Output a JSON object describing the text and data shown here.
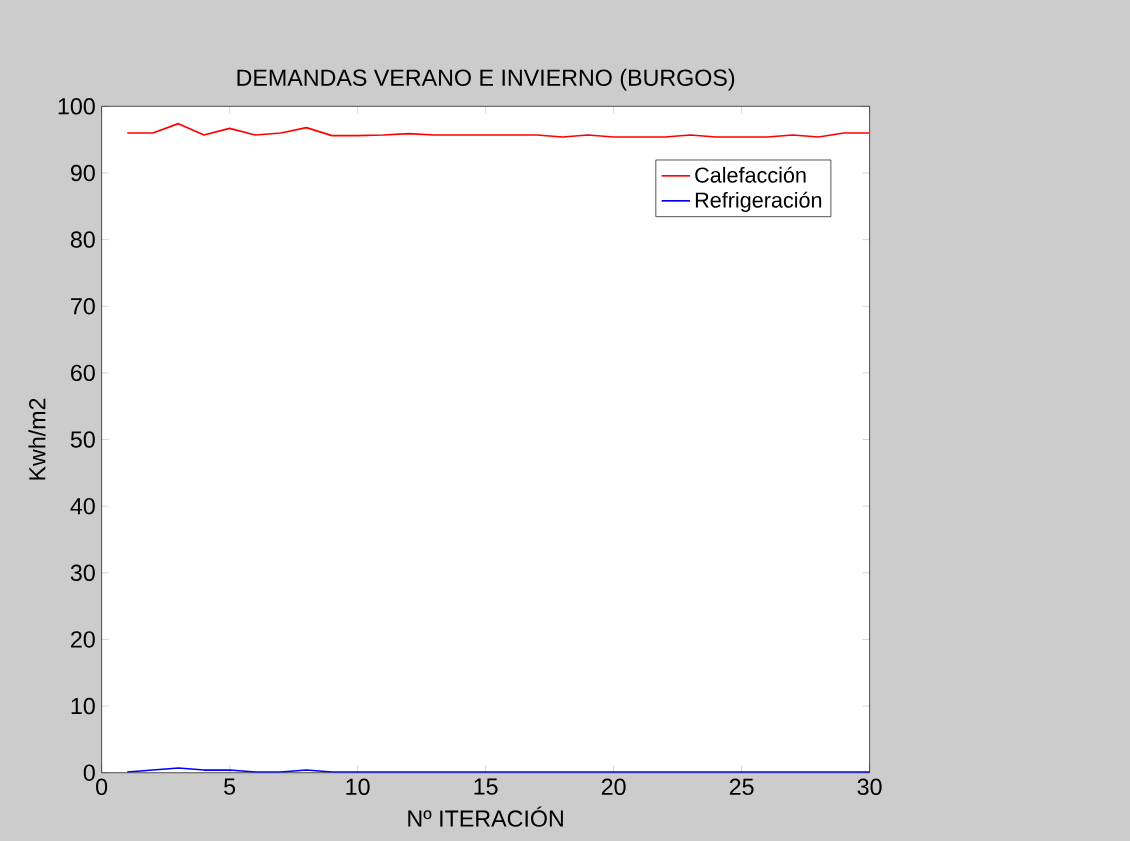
{
  "chart_data": {
    "type": "line",
    "title": "DEMANDAS VERANO E INVIERNO (BURGOS)",
    "xlabel": "Nº ITERACIÓN",
    "ylabel": "Kwh/m2",
    "x": [
      1,
      2,
      3,
      4,
      5,
      6,
      7,
      8,
      9,
      10,
      11,
      12,
      13,
      14,
      15,
      16,
      17,
      18,
      19,
      20,
      21,
      22,
      23,
      24,
      25,
      26,
      27,
      28,
      29,
      30
    ],
    "series": [
      {
        "name": "Calefacción",
        "color": "#ff0000",
        "values": [
          96.0,
          96.0,
          97.4,
          95.7,
          96.7,
          95.7,
          96.0,
          96.8,
          95.6,
          95.6,
          95.7,
          95.9,
          95.7,
          95.7,
          95.7,
          95.7,
          95.7,
          95.4,
          95.7,
          95.4,
          95.4,
          95.4,
          95.7,
          95.4,
          95.4,
          95.4,
          95.7,
          95.4,
          96.0,
          96.0
        ]
      },
      {
        "name": "Refrigeración",
        "color": "#0000ff",
        "values": [
          0.1,
          0.4,
          0.7,
          0.4,
          0.4,
          0.1,
          0.1,
          0.4,
          0.1,
          0.1,
          0.1,
          0.1,
          0.1,
          0.1,
          0.1,
          0.1,
          0.1,
          0.1,
          0.1,
          0.1,
          0.1,
          0.1,
          0.1,
          0.1,
          0.1,
          0.1,
          0.1,
          0.1,
          0.1,
          0.1
        ]
      }
    ],
    "xlim": [
      0,
      30
    ],
    "ylim": [
      0,
      100
    ],
    "xticks": [
      0,
      5,
      10,
      15,
      20,
      25,
      30
    ],
    "yticks": [
      0,
      10,
      20,
      30,
      40,
      50,
      60,
      70,
      80,
      90,
      100
    ],
    "grid": false,
    "legend": "top right",
    "line_style": "solid",
    "marker": "none"
  }
}
